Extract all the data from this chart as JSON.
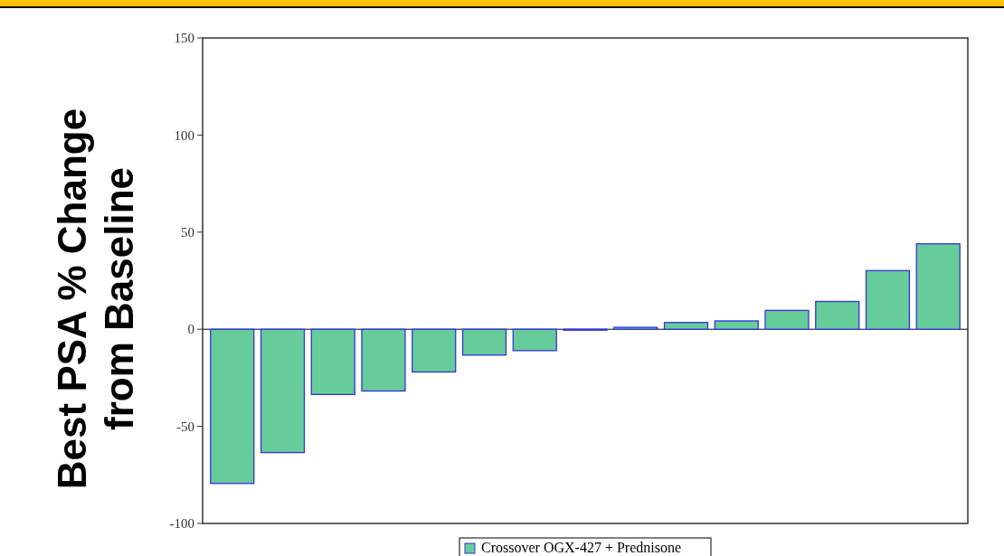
{
  "chart_data": {
    "type": "bar",
    "ylabel": "Best PSA % Change from Baseline",
    "categories": [
      null,
      null,
      null,
      null,
      null,
      null,
      null,
      null,
      null,
      null,
      null,
      null,
      null,
      null,
      null
    ],
    "series": [
      {
        "name": "Crossover OGX-427 + Prednisone",
        "color": "#66cc99",
        "values": [
          -79.4,
          -63.5,
          -33.6,
          -31.8,
          -22,
          -13.3,
          -11,
          -0.5,
          1,
          3.5,
          4.3,
          9.7,
          14.3,
          30.2,
          44
        ]
      }
    ],
    "ylim": [
      -100,
      150
    ],
    "yticks": [
      -100,
      -50,
      0,
      50,
      100,
      150
    ],
    "legend": "bottom",
    "tick_labels": "y"
  }
}
